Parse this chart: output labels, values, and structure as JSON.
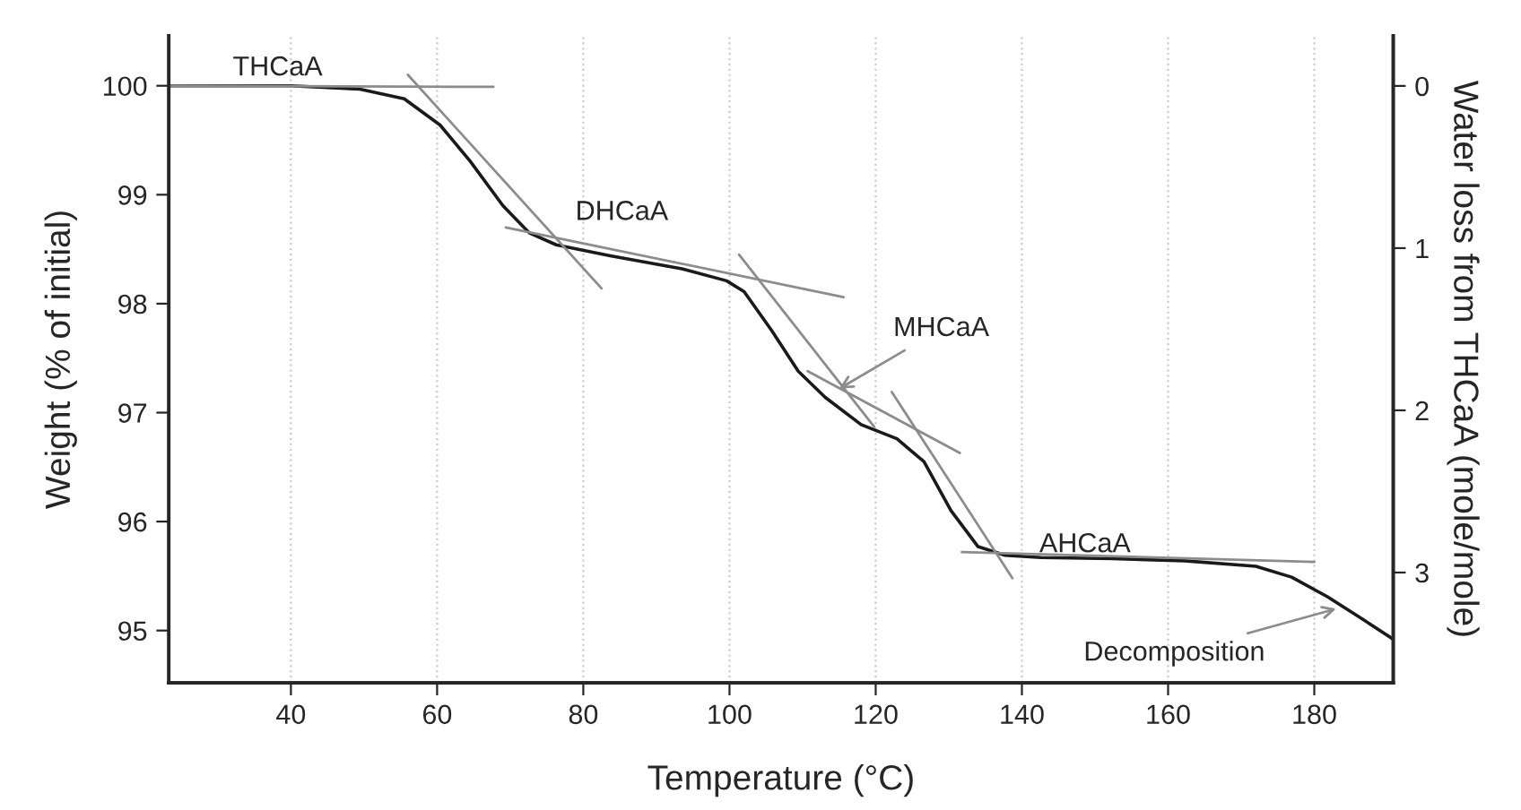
{
  "chart_data": {
    "type": "line",
    "xlabel": "Temperature (°C)",
    "ylabel": "Weight (% of initial)",
    "y2label": "Water loss from THCaA (mole/mole)",
    "xlim": [
      23.3,
      190.8
    ],
    "xticks": [
      40,
      60,
      80,
      100,
      120,
      140,
      160,
      180
    ],
    "ylim": [
      94.52,
      100.46
    ],
    "yticks": [
      95,
      96,
      97,
      98,
      99,
      100
    ],
    "y2lim": [
      3.68,
      -0.31
    ],
    "y2ticks": [
      0,
      1,
      2,
      3
    ],
    "grid": "x",
    "marker": "none",
    "line_style": "solid",
    "series": [
      {
        "color": "#1a1a1a",
        "x": [
          23.3,
          40,
          49.3,
          55.5,
          60.4,
          64.5,
          69,
          72.6,
          76.3,
          83.7,
          93.5,
          99.6,
          102,
          105.8,
          109.4,
          113.1,
          118,
          122.9,
          126.6,
          130.3,
          134,
          137.7,
          142.6,
          152.4,
          162.2,
          172,
          176.9,
          181.8,
          186.7,
          190.8
        ],
        "values": [
          100.0,
          100.0,
          99.97,
          99.88,
          99.64,
          99.31,
          98.9,
          98.65,
          98.54,
          98.44,
          98.32,
          98.21,
          98.11,
          97.75,
          97.38,
          97.14,
          96.89,
          96.76,
          96.55,
          96.1,
          95.77,
          95.69,
          95.67,
          95.66,
          95.64,
          95.59,
          95.49,
          95.31,
          95.1,
          94.92
        ]
      },
      {
        "color": "#8c8c8c",
        "x": [
          23.3,
          67.7
        ],
        "values": [
          100.0,
          99.99
        ]
      },
      {
        "color": "#8c8c8c",
        "x": [
          56,
          82.5
        ],
        "values": [
          100.1,
          98.14
        ]
      },
      {
        "color": "#8c8c8c",
        "x": [
          69.4,
          115.6
        ],
        "values": [
          98.7,
          98.06
        ]
      },
      {
        "color": "#8c8c8c",
        "x": [
          101.3,
          119.8
        ],
        "values": [
          98.45,
          96.87
        ]
      },
      {
        "color": "#8c8c8c",
        "x": [
          110.7,
          131.5
        ],
        "values": [
          97.38,
          96.63
        ]
      },
      {
        "color": "#8c8c8c",
        "x": [
          122.2,
          138.7
        ],
        "values": [
          97.19,
          95.48
        ]
      },
      {
        "color": "#8c8c8c",
        "x": [
          131.8,
          180
        ],
        "values": [
          95.72,
          95.63
        ]
      }
    ],
    "annotations": [
      {
        "text": "THCaA",
        "x": 45,
        "y": 100.0
      },
      {
        "text": "DHCaA",
        "x": 88,
        "y": 98.4
      },
      {
        "text": "MHCaA",
        "x": 115,
        "y": 97.22
      },
      {
        "text": "AHCaA",
        "x": 150,
        "y": 95.67
      },
      {
        "text": "Decomposition",
        "x": 183,
        "y": 95.2
      }
    ]
  }
}
